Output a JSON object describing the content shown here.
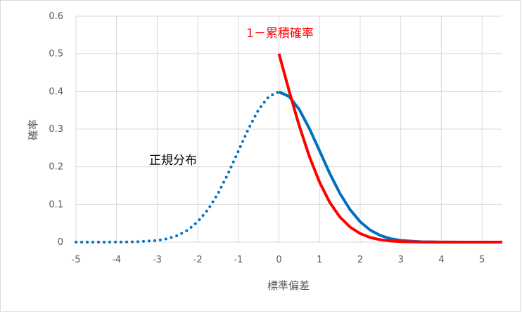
{
  "chart_data": {
    "type": "line",
    "xlabel": "標準偏差",
    "ylabel": "確率",
    "xlim": [
      -5,
      5.5
    ],
    "ylim": [
      0,
      0.6
    ],
    "x_ticks": [
      "-5",
      "-4",
      "-3",
      "-2",
      "-1",
      "0",
      "1",
      "2",
      "3",
      "4",
      "5"
    ],
    "y_ticks": [
      "0",
      "0.1",
      "0.2",
      "0.3",
      "0.4",
      "0.5",
      "0.6"
    ],
    "grid": "vertical and horizontal",
    "annotations": [
      {
        "text": "正規分布",
        "color": "#000000"
      },
      {
        "text": "1－累積確率",
        "color": "#ff0000"
      }
    ],
    "series": [
      {
        "color": "#0070c0",
        "style": "dotted for x<0, solid for x>=0",
        "x": [
          -5,
          -4.5,
          -4,
          -3.5,
          -3,
          -2.75,
          -2.5,
          -2.25,
          -2,
          -1.75,
          -1.5,
          -1.25,
          -1,
          -0.75,
          -0.5,
          -0.25,
          0,
          0.25,
          0.5,
          0.75,
          1,
          1.25,
          1.5,
          1.75,
          2,
          2.25,
          2.5,
          2.75,
          3,
          3.5,
          4,
          4.5,
          5,
          5.5
        ],
        "values": [
          0,
          0,
          0.0001,
          0.0009,
          0.0044,
          0.0091,
          0.0175,
          0.0317,
          0.054,
          0.0863,
          0.1295,
          0.1826,
          0.242,
          0.3011,
          0.3521,
          0.3867,
          0.3989,
          0.3867,
          0.3521,
          0.3011,
          0.242,
          0.1826,
          0.1295,
          0.0863,
          0.054,
          0.0317,
          0.0175,
          0.0091,
          0.0044,
          0.0009,
          0.0001,
          0,
          0,
          0
        ]
      },
      {
        "color": "#ff0000",
        "style": "solid",
        "x": [
          0,
          0.25,
          0.5,
          0.75,
          1,
          1.25,
          1.5,
          1.75,
          2,
          2.25,
          2.5,
          2.75,
          3,
          3.5,
          4,
          4.5,
          5,
          5.5
        ],
        "values": [
          0.5,
          0.4013,
          0.3085,
          0.2266,
          0.1587,
          0.1056,
          0.0668,
          0.0401,
          0.0228,
          0.0122,
          0.0062,
          0.003,
          0.0013,
          0.0002,
          0,
          0,
          0,
          0
        ]
      }
    ]
  }
}
